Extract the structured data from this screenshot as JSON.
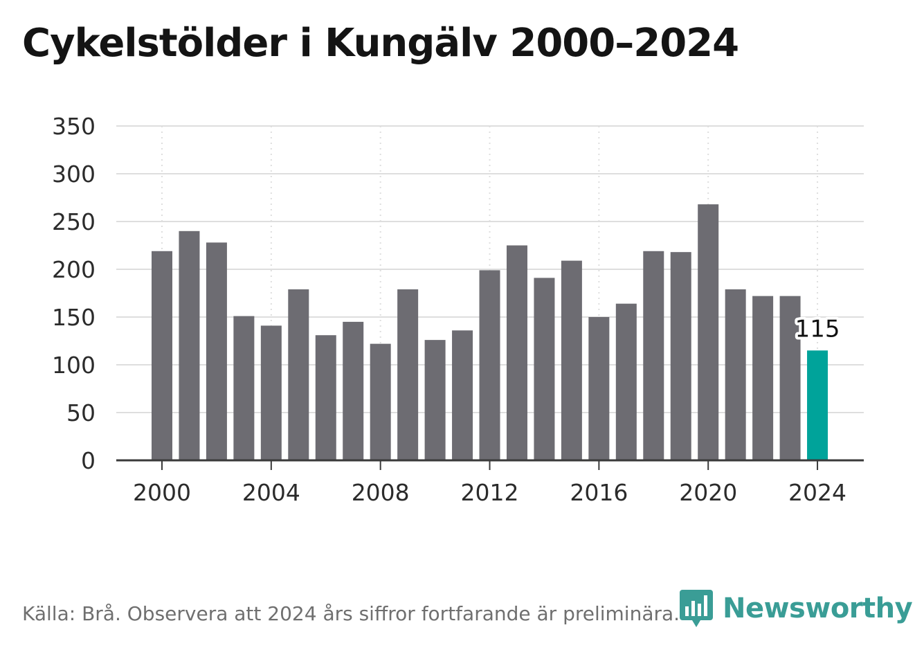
{
  "title": "Cykelstölder i Kungälv 2000–2024",
  "footer": "Källa: Brå. Observera att 2024 års siffror fortfarande är preliminära.",
  "brand": "Newsworthy",
  "colors": {
    "bar": "#6d6c72",
    "highlight": "#00a39a",
    "grid": "#dedede",
    "axis": "#3a3a3a",
    "text": "#2b2b2b",
    "brand": "#3a9d96"
  },
  "chart_data": {
    "type": "bar",
    "title": "Cykelstölder i Kungälv 2000–2024",
    "xlabel": "",
    "ylabel": "",
    "categories": [
      "2000",
      "2001",
      "2002",
      "2003",
      "2004",
      "2005",
      "2006",
      "2007",
      "2008",
      "2009",
      "2010",
      "2011",
      "2012",
      "2013",
      "2014",
      "2015",
      "2016",
      "2017",
      "2018",
      "2019",
      "2020",
      "2021",
      "2022",
      "2023",
      "2024"
    ],
    "values": [
      219,
      240,
      228,
      151,
      141,
      179,
      131,
      145,
      122,
      179,
      126,
      136,
      199,
      225,
      191,
      209,
      150,
      164,
      219,
      218,
      268,
      179,
      172,
      172,
      115
    ],
    "highlight_index": 24,
    "highlight_label": "115",
    "ylim": [
      0,
      350
    ],
    "yticks": [
      "0",
      "50",
      "100",
      "150",
      "200",
      "250",
      "300",
      "350"
    ],
    "xticks": [
      "2000",
      "2004",
      "2008",
      "2012",
      "2016",
      "2020",
      "2024"
    ],
    "grid": true
  }
}
